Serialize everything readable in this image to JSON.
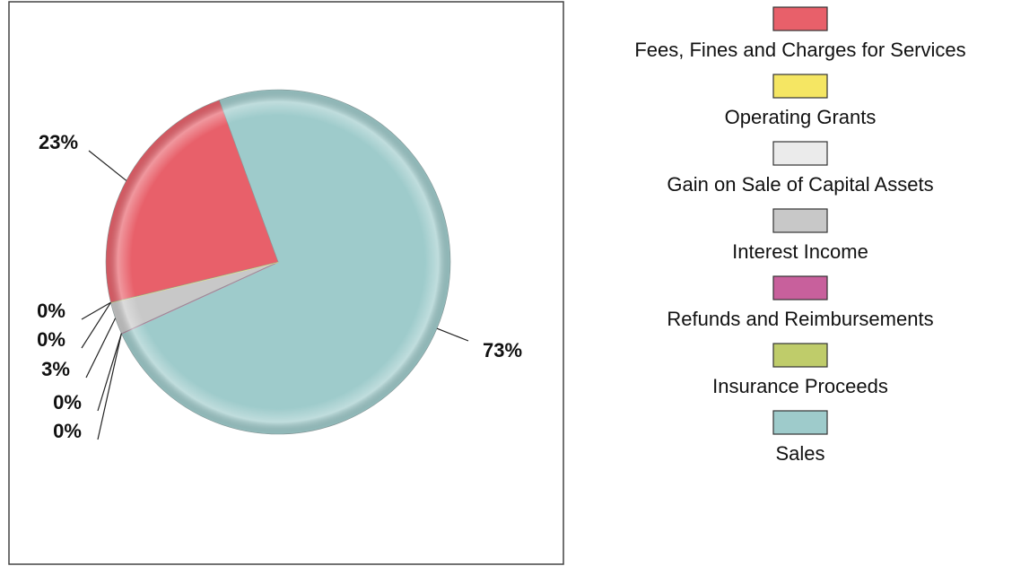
{
  "chart_data": {
    "type": "pie",
    "categories": [
      "Fees, Fines and Charges for Services",
      "Operating Grants",
      "Gain on Sale of Capital Assets",
      "Interest Income",
      "Refunds and Reimbursements",
      "Insurance Proceeds",
      "Sales"
    ],
    "values": [
      23,
      0,
      0,
      3,
      0,
      0,
      73
    ],
    "value_labels": [
      "23%",
      "0%",
      "0%",
      "3%",
      "0%",
      "0%",
      "73%"
    ],
    "colors": [
      "#e8606a",
      "#f5e663",
      "#ebebeb",
      "#c8c8c8",
      "#c8609c",
      "#bfcc6a",
      "#9ecbcb"
    ],
    "legend": "right"
  }
}
